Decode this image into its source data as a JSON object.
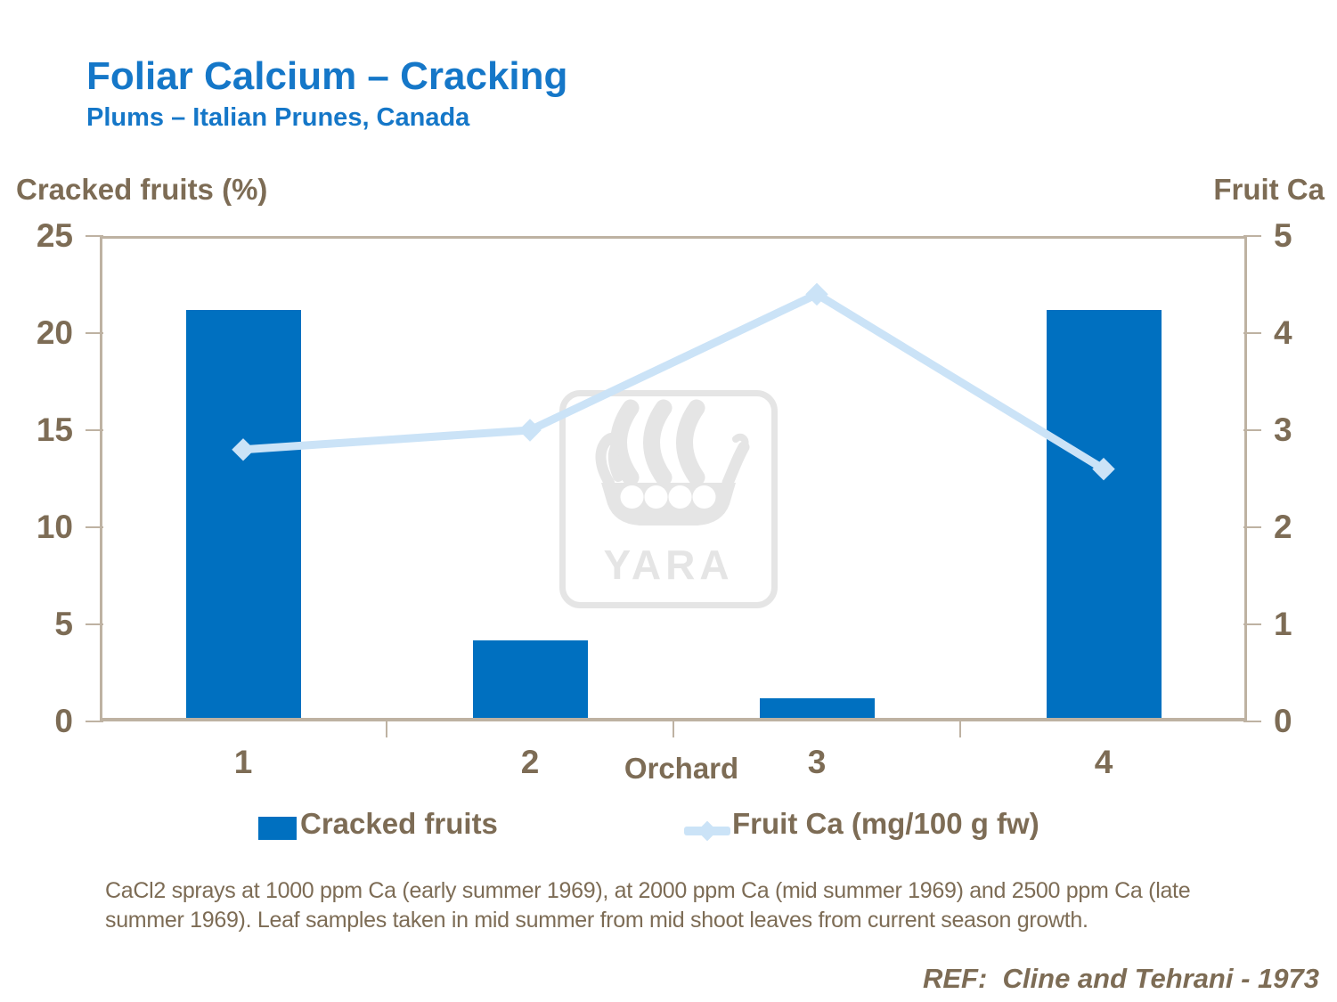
{
  "chart_data": {
    "type": "bar",
    "subtype": "bar-line-combo",
    "title": "Foliar Calcium – Cracking",
    "subtitle": "Plums – Italian Prunes, Canada",
    "categories": [
      "1",
      "2",
      "3",
      "4"
    ],
    "series": [
      {
        "name": "Cracked fruits",
        "type": "bar",
        "axis": "left",
        "values": [
          21,
          4,
          1,
          21
        ],
        "color": "#0070C0"
      },
      {
        "name": "Fruit Ca (mg/100 g fw)",
        "type": "line",
        "axis": "right",
        "values": [
          2.8,
          3.0,
          4.4,
          2.6
        ],
        "color": "#CBE3F7"
      }
    ],
    "xlabel": "Orchard",
    "left_axis": {
      "label": "Cracked fruits (%)",
      "range": [
        0,
        25
      ],
      "ticks": [
        0,
        5,
        10,
        15,
        20,
        25
      ]
    },
    "right_axis": {
      "label": "Fruit Ca",
      "range": [
        0,
        5
      ],
      "ticks": [
        0,
        1,
        2,
        3,
        4,
        5
      ]
    },
    "grid": false,
    "legend_position": "bottom"
  },
  "watermark": {
    "label": "YARA"
  },
  "footnote": {
    "text": "CaCl2 sprays at 1000 ppm Ca (early summer 1969), at 2000 ppm Ca (mid summer 1969) and 2500 ppm Ca (late\nsummer 1969). Leaf samples taken in mid summer from mid shoot leaves from current season growth."
  },
  "reference": {
    "text": "REF:  Cline and Tehrani - 1973"
  },
  "colors": {
    "title_blue": "#1577C8",
    "bar_blue": "#0070C0",
    "line_light_blue": "#CBE3F7",
    "text_brown": "#7D6C55",
    "axis_tan": "#BEB2A2",
    "watermark_gray": "#E5E5E5"
  }
}
